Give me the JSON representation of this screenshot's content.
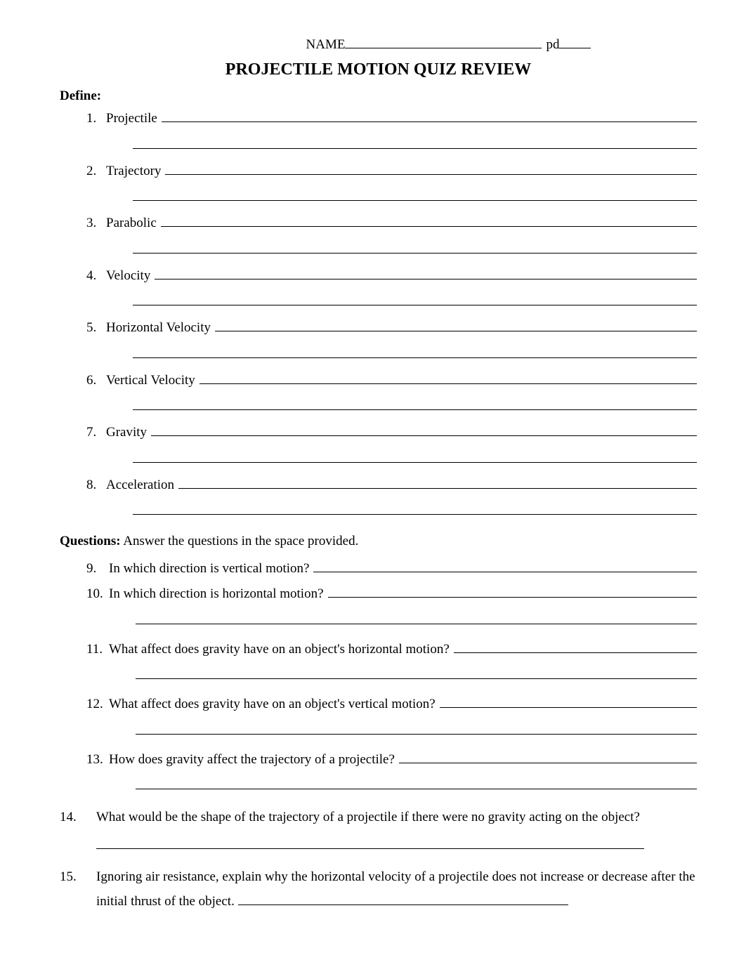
{
  "header": {
    "name_label": "NAME",
    "pd_label": " pd"
  },
  "title": "PROJECTILE MOTION QUIZ REVIEW",
  "define": {
    "heading": "Define:",
    "items": [
      {
        "num": "1.",
        "term": "Projectile"
      },
      {
        "num": "2.",
        "term": "Trajectory"
      },
      {
        "num": "3.",
        "term": "Parabolic"
      },
      {
        "num": "4.",
        "term": "Velocity"
      },
      {
        "num": "5.",
        "term": "Horizontal Velocity"
      },
      {
        "num": "6.",
        "term": "Vertical Velocity"
      },
      {
        "num": "7.",
        "term": "Gravity"
      },
      {
        "num": "8.",
        "term": "Acceleration"
      }
    ]
  },
  "questions": {
    "heading_bold": "Questions:",
    "heading_rest": " Answer the questions in the space provided.",
    "items": [
      {
        "num": "9.",
        "text": "In which direction is vertical motion?",
        "extra_line": false
      },
      {
        "num": "10.",
        "text": "In which direction is horizontal motion?",
        "extra_line": true
      },
      {
        "num": "11.",
        "text": "What affect does gravity have on an object's horizontal motion?",
        "extra_line": true
      },
      {
        "num": "12.",
        "text": "What affect does gravity have on an object's vertical motion?",
        "extra_line": true
      },
      {
        "num": "13.",
        "text": "How does gravity affect the trajectory of a projectile?",
        "extra_line": true
      }
    ],
    "long_items": [
      {
        "num": "14.",
        "text": "What would be the shape of the trajectory of a projectile if there were no gravity acting on the object?",
        "blank_after": true
      },
      {
        "num": "15.",
        "text_before": "Ignoring air resistance, explain why the horizontal velocity of a projectile does not increase or decrease after the initial thrust of the object. ",
        "inline_blank_width": 470
      }
    ]
  },
  "style": {
    "background_color": "#ffffff",
    "text_color": "#000000",
    "font_family": "Times New Roman",
    "body_fontsize": 19,
    "title_fontsize": 24,
    "title_fontweight": "bold",
    "line_color": "#000000"
  }
}
